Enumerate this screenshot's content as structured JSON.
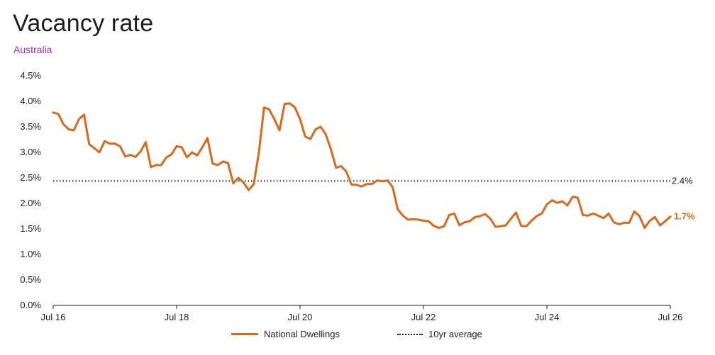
{
  "title": "Vacancy rate",
  "subtitle": "Australia",
  "colors": {
    "series": "#d9691c",
    "average": "#111111",
    "subtitle": "#9b2fae"
  },
  "chart_data": {
    "type": "line",
    "title": "Vacancy rate",
    "subtitle": "Australia",
    "xlabel": "",
    "ylabel": "",
    "x_start": "2016-07",
    "x_end": "2026-07",
    "xlim": [
      "2016-07",
      "2026-07"
    ],
    "ylim": [
      0,
      4.5
    ],
    "y_ticks": [
      "0.0%",
      "0.5%",
      "1.0%",
      "1.5%",
      "2.0%",
      "2.5%",
      "3.0%",
      "3.5%",
      "4.0%",
      "4.5%"
    ],
    "y_tick_values": [
      0,
      0.5,
      1.0,
      1.5,
      2.0,
      2.5,
      3.0,
      3.5,
      4.0,
      4.5
    ],
    "x_ticks": [
      "Jul 16",
      "Jul 18",
      "Jul 20",
      "Jul 22",
      "Jul 24",
      "Jul 26"
    ],
    "x_tick_values": [
      "2016-07",
      "2018-07",
      "2020-07",
      "2022-07",
      "2024-07",
      "2026-07"
    ],
    "grid": false,
    "legend_position": "bottom",
    "series": [
      {
        "name": "National Dwellings",
        "x": [
          "2016-07",
          "2016-08",
          "2016-09",
          "2016-10",
          "2016-11",
          "2016-12",
          "2017-01",
          "2017-02",
          "2017-03",
          "2017-04",
          "2017-05",
          "2017-06",
          "2017-07",
          "2017-08",
          "2017-09",
          "2017-10",
          "2017-11",
          "2017-12",
          "2018-01",
          "2018-02",
          "2018-03",
          "2018-04",
          "2018-05",
          "2018-06",
          "2018-07",
          "2018-08",
          "2018-09",
          "2018-10",
          "2018-11",
          "2018-12",
          "2019-01",
          "2019-02",
          "2019-03",
          "2019-04",
          "2019-05",
          "2019-06",
          "2019-07",
          "2019-08",
          "2019-09",
          "2019-10",
          "2019-11",
          "2019-12",
          "2020-01",
          "2020-02",
          "2020-03",
          "2020-04",
          "2020-05",
          "2020-06",
          "2020-07",
          "2020-08",
          "2020-09",
          "2020-10",
          "2020-11",
          "2020-12",
          "2021-01",
          "2021-02",
          "2021-03",
          "2021-04",
          "2021-05",
          "2021-06",
          "2021-07",
          "2021-08",
          "2021-09",
          "2021-10",
          "2021-11",
          "2021-12",
          "2022-01",
          "2022-02",
          "2022-03",
          "2022-04",
          "2022-05",
          "2022-06",
          "2022-07",
          "2022-08",
          "2022-09",
          "2022-10",
          "2022-11",
          "2022-12",
          "2023-01",
          "2023-02",
          "2023-03",
          "2023-04",
          "2023-05",
          "2023-06",
          "2023-07",
          "2023-08",
          "2023-09",
          "2023-10",
          "2023-11",
          "2023-12",
          "2024-01",
          "2024-02",
          "2024-03",
          "2024-04",
          "2024-05",
          "2024-06",
          "2024-07",
          "2024-08",
          "2024-09",
          "2024-10",
          "2024-11",
          "2024-12",
          "2025-01",
          "2025-02",
          "2025-03",
          "2025-04",
          "2025-05",
          "2025-06",
          "2025-07",
          "2025-08",
          "2025-09",
          "2025-10",
          "2025-11",
          "2025-12",
          "2026-01",
          "2026-02",
          "2026-03",
          "2026-04",
          "2026-05",
          "2026-06",
          "2026-07"
        ],
        "values": [
          3.78,
          3.75,
          3.55,
          3.45,
          3.43,
          3.65,
          3.74,
          3.16,
          3.08,
          3.0,
          3.22,
          3.17,
          3.17,
          3.12,
          2.92,
          2.95,
          2.91,
          3.02,
          3.2,
          2.71,
          2.75,
          2.75,
          2.9,
          2.96,
          3.12,
          3.1,
          2.9,
          3.0,
          2.94,
          3.1,
          3.28,
          2.78,
          2.75,
          2.82,
          2.79,
          2.39,
          2.5,
          2.41,
          2.26,
          2.38,
          3.0,
          3.88,
          3.84,
          3.65,
          3.43,
          3.95,
          3.96,
          3.88,
          3.65,
          3.31,
          3.26,
          3.45,
          3.5,
          3.35,
          3.06,
          2.7,
          2.73,
          2.62,
          2.37,
          2.36,
          2.33,
          2.38,
          2.38,
          2.45,
          2.43,
          2.45,
          2.32,
          1.88,
          1.76,
          1.68,
          1.69,
          1.68,
          1.66,
          1.65,
          1.56,
          1.52,
          1.55,
          1.77,
          1.8,
          1.57,
          1.63,
          1.65,
          1.73,
          1.75,
          1.79,
          1.7,
          1.54,
          1.55,
          1.57,
          1.7,
          1.82,
          1.56,
          1.55,
          1.66,
          1.75,
          1.8,
          1.98,
          2.06,
          2.01,
          2.04,
          1.96,
          2.13,
          2.11,
          1.77,
          1.76,
          1.8,
          1.76,
          1.71,
          1.8,
          1.63,
          1.59,
          1.62,
          1.62,
          1.84,
          1.75,
          1.52,
          1.66,
          1.73,
          1.57,
          1.65,
          1.74
        ]
      },
      {
        "name": "10yr average",
        "style": "dotted",
        "constant": 2.44
      }
    ],
    "annotations": [
      {
        "text": "2.4%",
        "series": "10yr average"
      },
      {
        "text": "1.7%",
        "series": "National Dwellings"
      }
    ]
  },
  "legend": {
    "items": [
      {
        "label": "National Dwellings"
      },
      {
        "label": "10yr average"
      }
    ]
  }
}
